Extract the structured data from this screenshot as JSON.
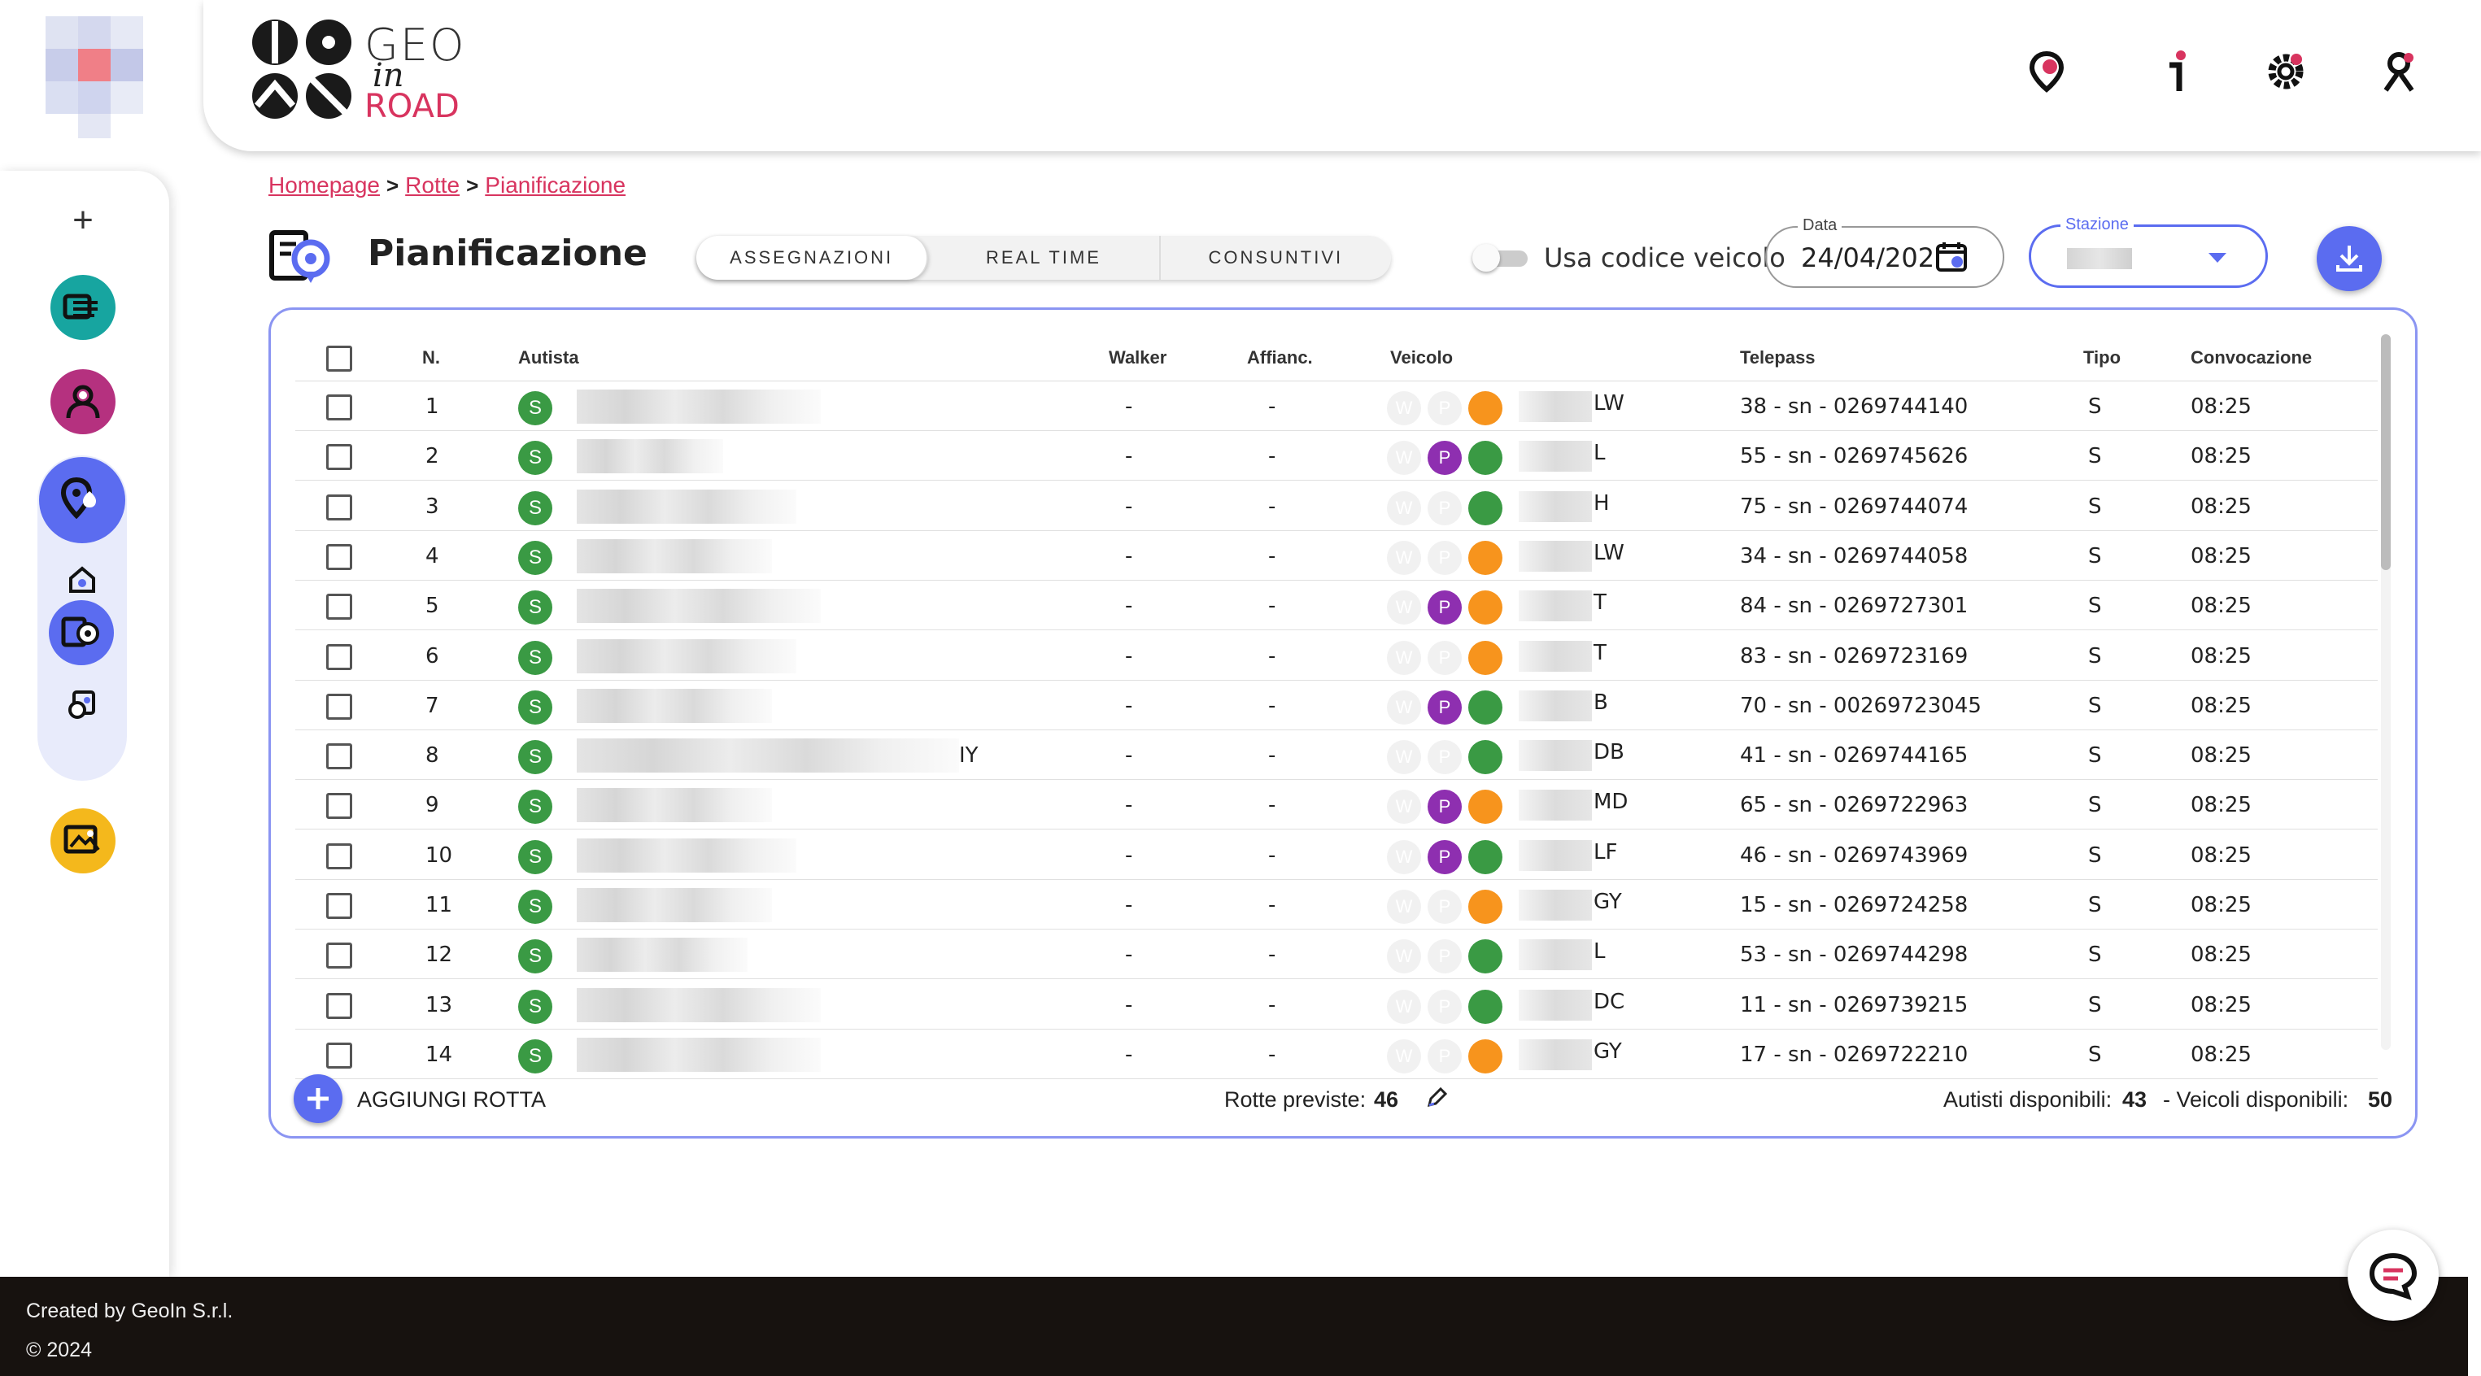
{
  "brand": {
    "geo": "GEO",
    "in": "in",
    "road": "ROAD"
  },
  "header_icons": [
    "map-pin-icon",
    "info-icon",
    "settings-icon",
    "user-icon"
  ],
  "breadcrumb": [
    "Homepage",
    "Rotte",
    "Pianificazione"
  ],
  "page_title": "Pianificazione",
  "tabs": [
    "ASSEGNAZIONI",
    "REAL TIME",
    "CONSUNTIVI"
  ],
  "active_tab": "ASSEGNAZIONI",
  "toggle_label": "Usa codice veicolo",
  "date_field": {
    "label": "Data",
    "value": "24/04/202"
  },
  "station_field": {
    "label": "Stazione"
  },
  "table": {
    "headers": {
      "n": "N.",
      "autista": "Autista",
      "walker": "Walker",
      "affianc": "Affianc.",
      "veicolo": "Veicolo",
      "telepass": "Telepass",
      "tipo": "Tipo",
      "convocazione": "Convocazione"
    },
    "badge": "S",
    "walker_letter": "W",
    "p_letter": "P",
    "rows": [
      {
        "n": "1",
        "driver_suffix": "",
        "walker": "-",
        "affianc": "-",
        "p": false,
        "status": "orange",
        "plate_suffix": "LW",
        "telepass": "38 - sn - 0269744140",
        "tipo": "S",
        "convocazione": "08:25"
      },
      {
        "n": "2",
        "driver_suffix": "",
        "walker": "-",
        "affianc": "-",
        "p": true,
        "status": "green",
        "plate_suffix": "L",
        "telepass": "55 - sn - 0269745626",
        "tipo": "S",
        "convocazione": "08:25"
      },
      {
        "n": "3",
        "driver_suffix": "",
        "walker": "-",
        "affianc": "-",
        "p": false,
        "status": "green",
        "plate_suffix": "H",
        "telepass": "75 - sn - 0269744074",
        "tipo": "S",
        "convocazione": "08:25"
      },
      {
        "n": "4",
        "driver_suffix": "",
        "walker": "-",
        "affianc": "-",
        "p": false,
        "status": "orange",
        "plate_suffix": "LW",
        "telepass": "34 - sn - 0269744058",
        "tipo": "S",
        "convocazione": "08:25"
      },
      {
        "n": "5",
        "driver_suffix": "",
        "walker": "-",
        "affianc": "-",
        "p": true,
        "status": "orange",
        "plate_suffix": "T",
        "telepass": "84 - sn - 0269727301",
        "tipo": "S",
        "convocazione": "08:25"
      },
      {
        "n": "6",
        "driver_suffix": "",
        "walker": "-",
        "affianc": "-",
        "p": false,
        "status": "orange",
        "plate_suffix": "T",
        "telepass": "83 - sn - 0269723169",
        "tipo": "S",
        "convocazione": "08:25"
      },
      {
        "n": "7",
        "driver_suffix": "",
        "walker": "-",
        "affianc": "-",
        "p": true,
        "status": "green",
        "plate_suffix": "B",
        "telepass": "70 - sn - 00269723045",
        "tipo": "S",
        "convocazione": "08:25"
      },
      {
        "n": "8",
        "driver_suffix": "IY",
        "walker": "-",
        "affianc": "-",
        "p": false,
        "status": "green",
        "plate_suffix": "DB",
        "telepass": "41 - sn - 0269744165",
        "tipo": "S",
        "convocazione": "08:25"
      },
      {
        "n": "9",
        "driver_suffix": "",
        "walker": "-",
        "affianc": "-",
        "p": true,
        "status": "orange",
        "plate_suffix": "MD",
        "telepass": "65 - sn - 0269722963",
        "tipo": "S",
        "convocazione": "08:25"
      },
      {
        "n": "10",
        "driver_suffix": "",
        "walker": "-",
        "affianc": "-",
        "p": true,
        "status": "green",
        "plate_suffix": "LF",
        "telepass": "46 - sn - 0269743969",
        "tipo": "S",
        "convocazione": "08:25"
      },
      {
        "n": "11",
        "driver_suffix": "",
        "walker": "-",
        "affianc": "-",
        "p": false,
        "status": "orange",
        "plate_suffix": "GY",
        "telepass": "15 - sn - 0269724258",
        "tipo": "S",
        "convocazione": "08:25"
      },
      {
        "n": "12",
        "driver_suffix": "",
        "walker": "-",
        "affianc": "-",
        "p": false,
        "status": "green",
        "plate_suffix": "L",
        "telepass": "53 - sn - 0269744298",
        "tipo": "S",
        "convocazione": "08:25"
      },
      {
        "n": "13",
        "driver_suffix": "",
        "walker": "-",
        "affianc": "-",
        "p": false,
        "status": "green",
        "plate_suffix": "DC",
        "telepass": "11 - sn - 0269739215",
        "tipo": "S",
        "convocazione": "08:25"
      },
      {
        "n": "14",
        "driver_suffix": "",
        "walker": "-",
        "affianc": "-",
        "p": false,
        "status": "orange",
        "plate_suffix": "GY",
        "telepass": "17 - sn - 0269722210",
        "tipo": "S",
        "convocazione": "08:25"
      }
    ]
  },
  "footer_bar": {
    "add_label": "AGGIUNGI ROTTA",
    "rotte_label": "Rotte previste:",
    "rotte_value": "46",
    "autisti_label": "Autisti disponibili:",
    "autisti_value": "43",
    "veicoli_label": "- Veicoli disponibili:",
    "veicoli_value": "50"
  },
  "copyright": {
    "line1": "Created by GeoIn S.r.l.",
    "line2": "© 2024"
  },
  "colors": {
    "accent": "#5b6cf0",
    "brand_red": "#d8345f",
    "green": "#3a9a44",
    "orange": "#f7941d",
    "purple": "#8e2fb0",
    "teal": "#17a5a0",
    "magenta": "#b5317f",
    "yellow": "#f4b81c"
  }
}
